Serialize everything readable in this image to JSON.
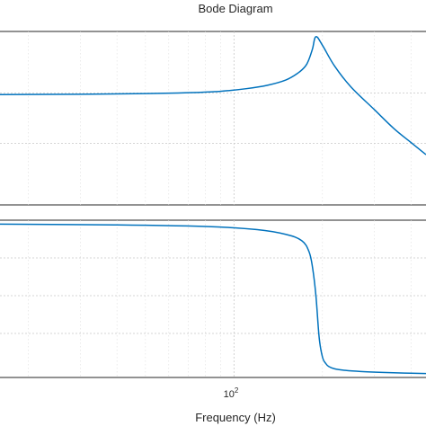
{
  "chart_data": [
    {
      "type": "line",
      "panel": "magnitude",
      "title": "Bode Diagram",
      "xscale": "log",
      "xlim": [
        16,
        450
      ],
      "ylim": [
        0,
        1
      ],
      "grid": true,
      "series": [
        {
          "color": "#0072bd",
          "x": [
            16,
            30,
            50,
            70,
            90,
            110,
            130,
            150,
            165,
            175,
            180,
            185,
            190,
            200,
            220,
            250,
            300,
            350,
            400,
            450
          ],
          "y": [
            0.636,
            0.638,
            0.642,
            0.647,
            0.655,
            0.67,
            0.69,
            0.72,
            0.76,
            0.8,
            0.84,
            0.9,
            0.97,
            0.92,
            0.8,
            0.68,
            0.55,
            0.44,
            0.36,
            0.29
          ]
        }
      ]
    },
    {
      "type": "line",
      "panel": "phase",
      "xscale": "log",
      "xlim": [
        16,
        450
      ],
      "ylim": [
        0,
        1
      ],
      "xticks": [
        {
          "base": "10",
          "exp": "2",
          "value": 100
        }
      ],
      "xlabel": "Frequency  (Hz)",
      "grid": true,
      "series": [
        {
          "color": "#0072bd",
          "x": [
            16,
            40,
            80,
            120,
            150,
            170,
            180,
            185,
            190,
            195,
            200,
            205,
            210,
            220,
            240,
            270,
            320,
            380,
            450
          ],
          "y": [
            0.975,
            0.97,
            0.96,
            0.94,
            0.91,
            0.87,
            0.8,
            0.7,
            0.52,
            0.25,
            0.13,
            0.09,
            0.07,
            0.055,
            0.045,
            0.038,
            0.032,
            0.028,
            0.025
          ]
        }
      ]
    }
  ]
}
